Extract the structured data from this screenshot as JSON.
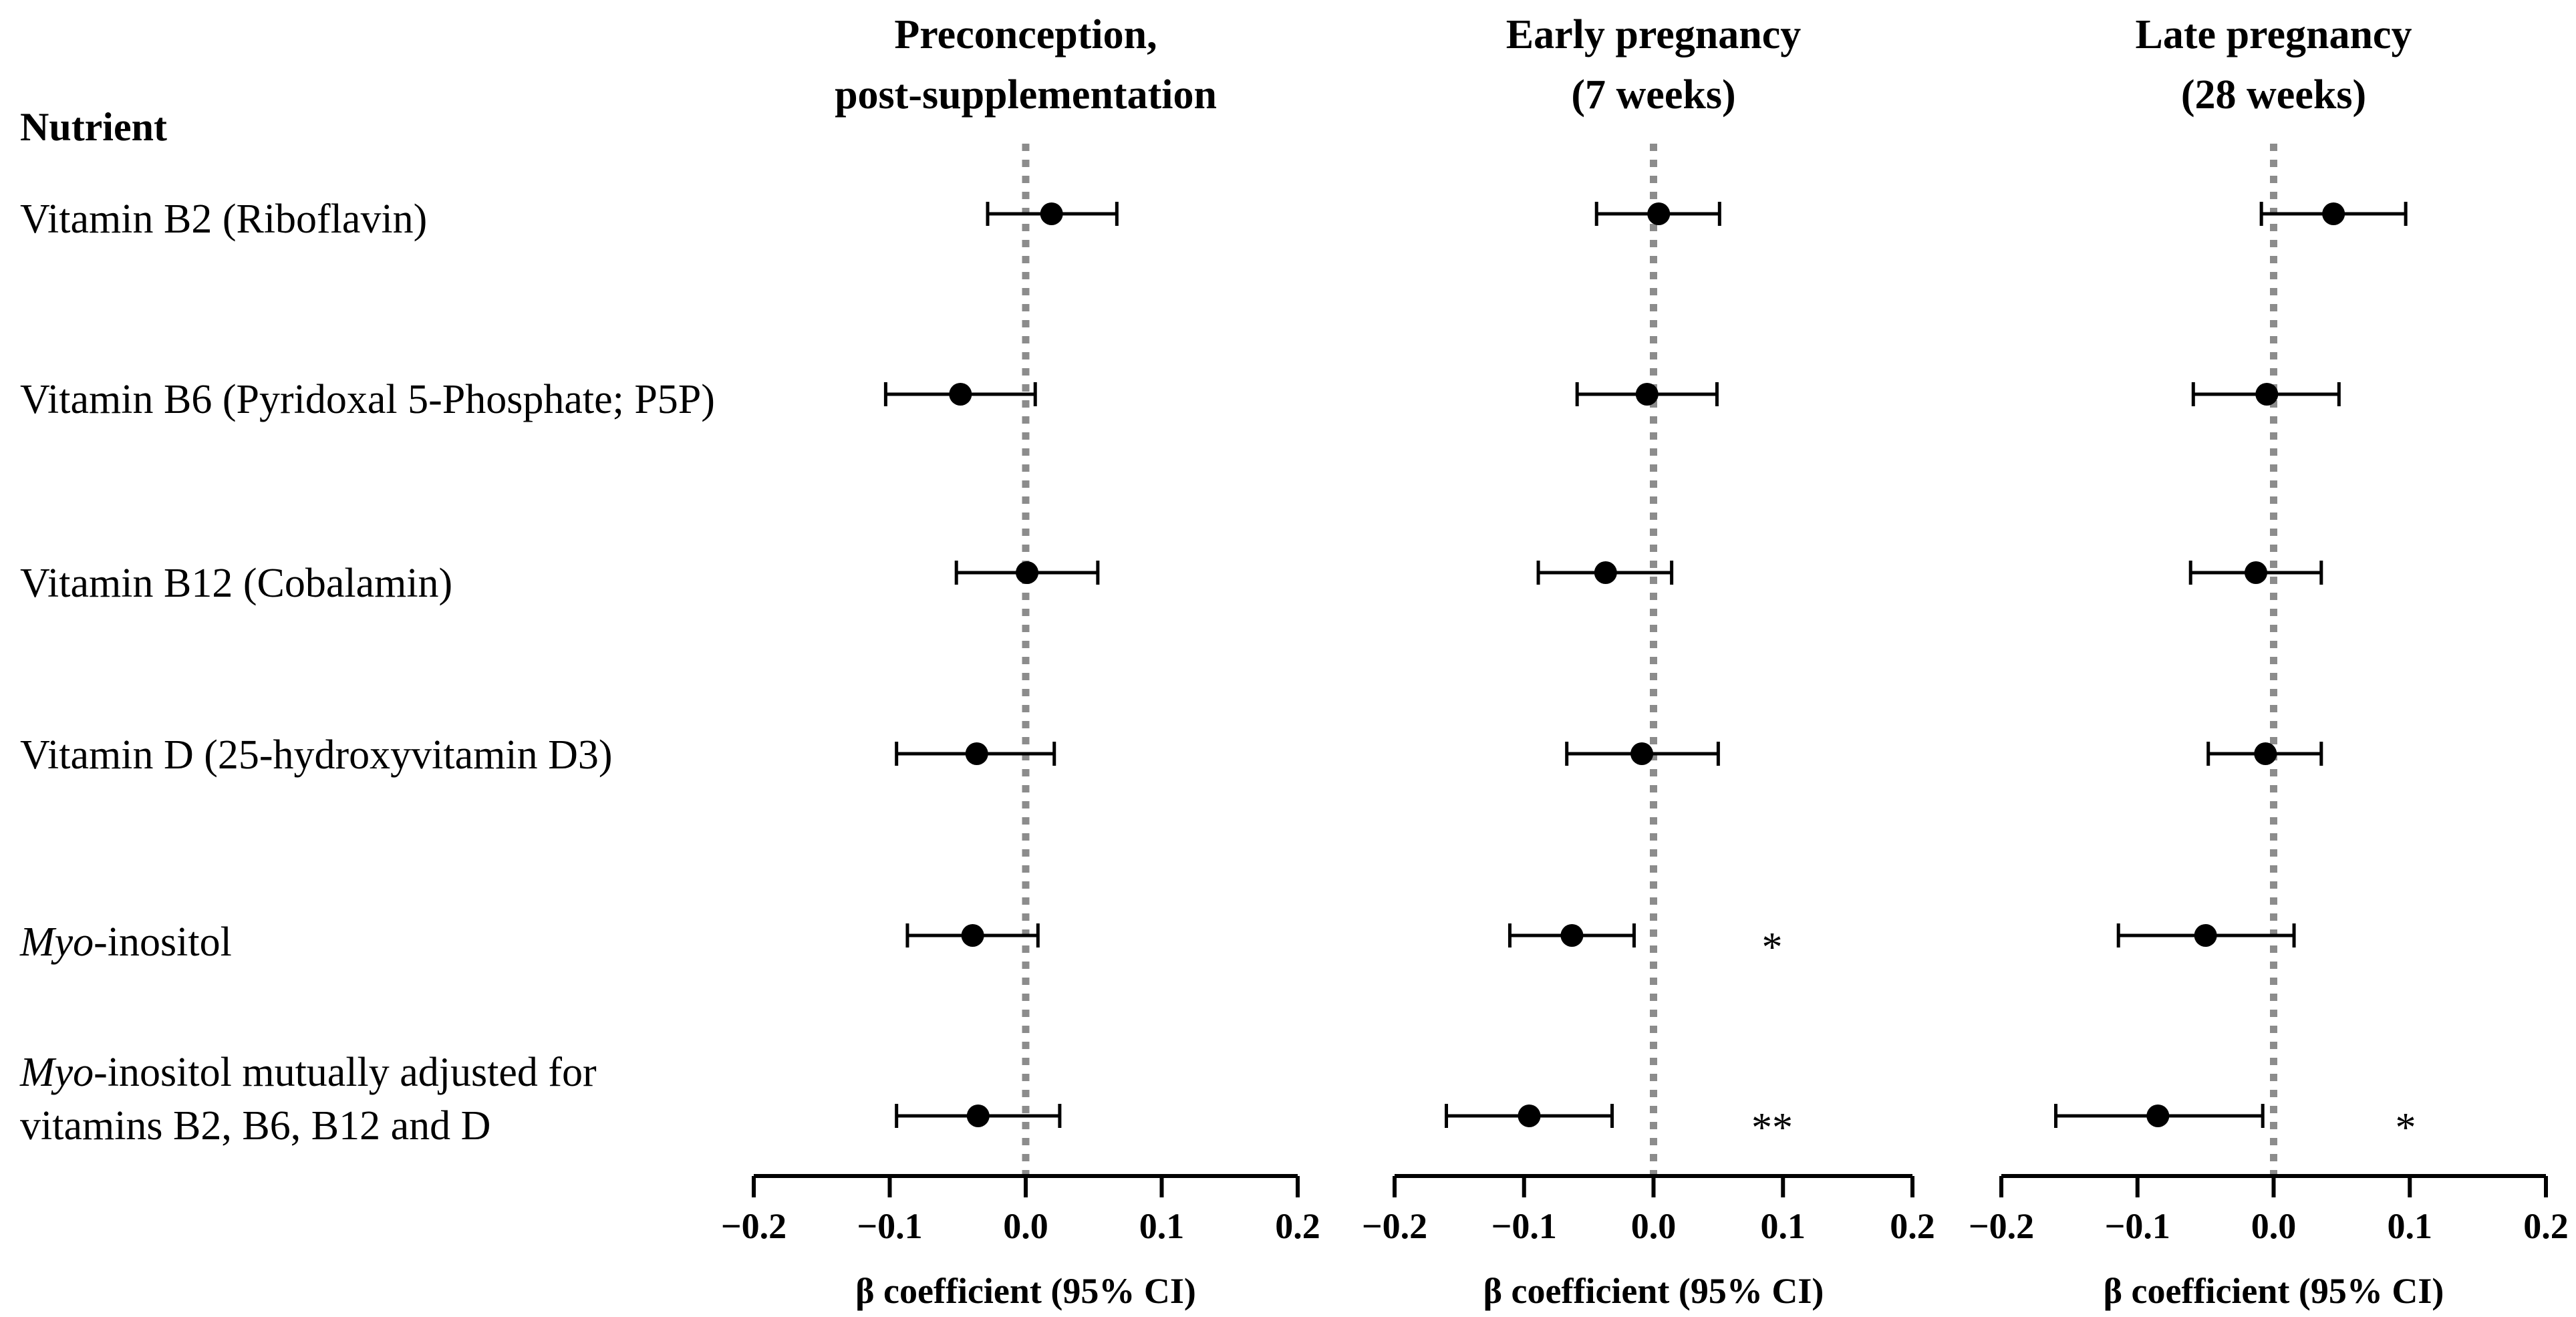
{
  "header": {
    "label": "Nutrient"
  },
  "rows": [
    {
      "label": "Vitamin B2 (Riboflavin)"
    },
    {
      "label": "Vitamin B6 (Pyridoxal 5-Phosphate; P5P)"
    },
    {
      "label": "Vitamin B12 (Cobalamin)"
    },
    {
      "label": "Vitamin D (25-hydroxyvitamin D3)"
    },
    {
      "label_italic": "Myo",
      "label_rest": "-inositol"
    },
    {
      "label_italic": "Myo",
      "label_rest": "-inositol mutually adjusted for",
      "label_line2": "vitamins B2, B6, B12 and D"
    }
  ],
  "chart_data": [
    {
      "type": "forest",
      "title_lines": [
        "Preconception,",
        "post-supplementation"
      ],
      "xlabel": "β coefficient (95% CI)",
      "xlim": [
        -0.2,
        0.2
      ],
      "ticks": [
        -0.2,
        -0.1,
        0.0,
        0.1,
        0.2
      ],
      "tick_labels": [
        "−0.2",
        "−0.1",
        "0.0",
        "0.1",
        "0.2"
      ],
      "reference_line": 0,
      "estimates": [
        0.019,
        -0.048,
        0.001,
        -0.036,
        -0.039,
        -0.035
      ],
      "ci_low": [
        -0.028,
        -0.103,
        -0.051,
        -0.095,
        -0.087,
        -0.095
      ],
      "ci_high": [
        0.067,
        0.007,
        0.053,
        0.021,
        0.009,
        0.025
      ],
      "significance": [
        "",
        "",
        "",
        "",
        "",
        ""
      ]
    },
    {
      "type": "forest",
      "title_lines": [
        "Early pregnancy",
        "(7 weeks)"
      ],
      "xlabel": "β coefficient (95% CI)",
      "xlim": [
        -0.2,
        0.2
      ],
      "ticks": [
        -0.2,
        -0.1,
        0.0,
        0.1,
        0.2
      ],
      "tick_labels": [
        "−0.2",
        "−0.1",
        "0.0",
        "0.1",
        "0.2"
      ],
      "reference_line": 0,
      "estimates": [
        0.004,
        -0.005,
        -0.037,
        -0.009,
        -0.063,
        -0.096
      ],
      "ci_low": [
        -0.044,
        -0.059,
        -0.089,
        -0.067,
        -0.111,
        -0.16
      ],
      "ci_high": [
        0.051,
        0.049,
        0.014,
        0.05,
        -0.015,
        -0.032
      ],
      "significance": [
        "",
        "",
        "",
        "",
        "*",
        "**"
      ]
    },
    {
      "type": "forest",
      "title_lines": [
        "Late pregnancy",
        "(28 weeks)"
      ],
      "xlabel": "β coefficient (95% CI)",
      "xlim": [
        -0.2,
        0.2
      ],
      "ticks": [
        -0.2,
        -0.1,
        0.0,
        0.1,
        0.2
      ],
      "tick_labels": [
        "−0.2",
        "−0.1",
        "0.0",
        "0.1",
        "0.2"
      ],
      "reference_line": 0,
      "estimates": [
        0.044,
        -0.005,
        -0.013,
        -0.006,
        -0.05,
        -0.085
      ],
      "ci_low": [
        -0.009,
        -0.059,
        -0.061,
        -0.048,
        -0.114,
        -0.16
      ],
      "ci_high": [
        0.097,
        0.048,
        0.035,
        0.035,
        0.015,
        -0.008
      ],
      "significance": [
        "",
        "",
        "",
        "",
        "",
        "*"
      ]
    }
  ]
}
